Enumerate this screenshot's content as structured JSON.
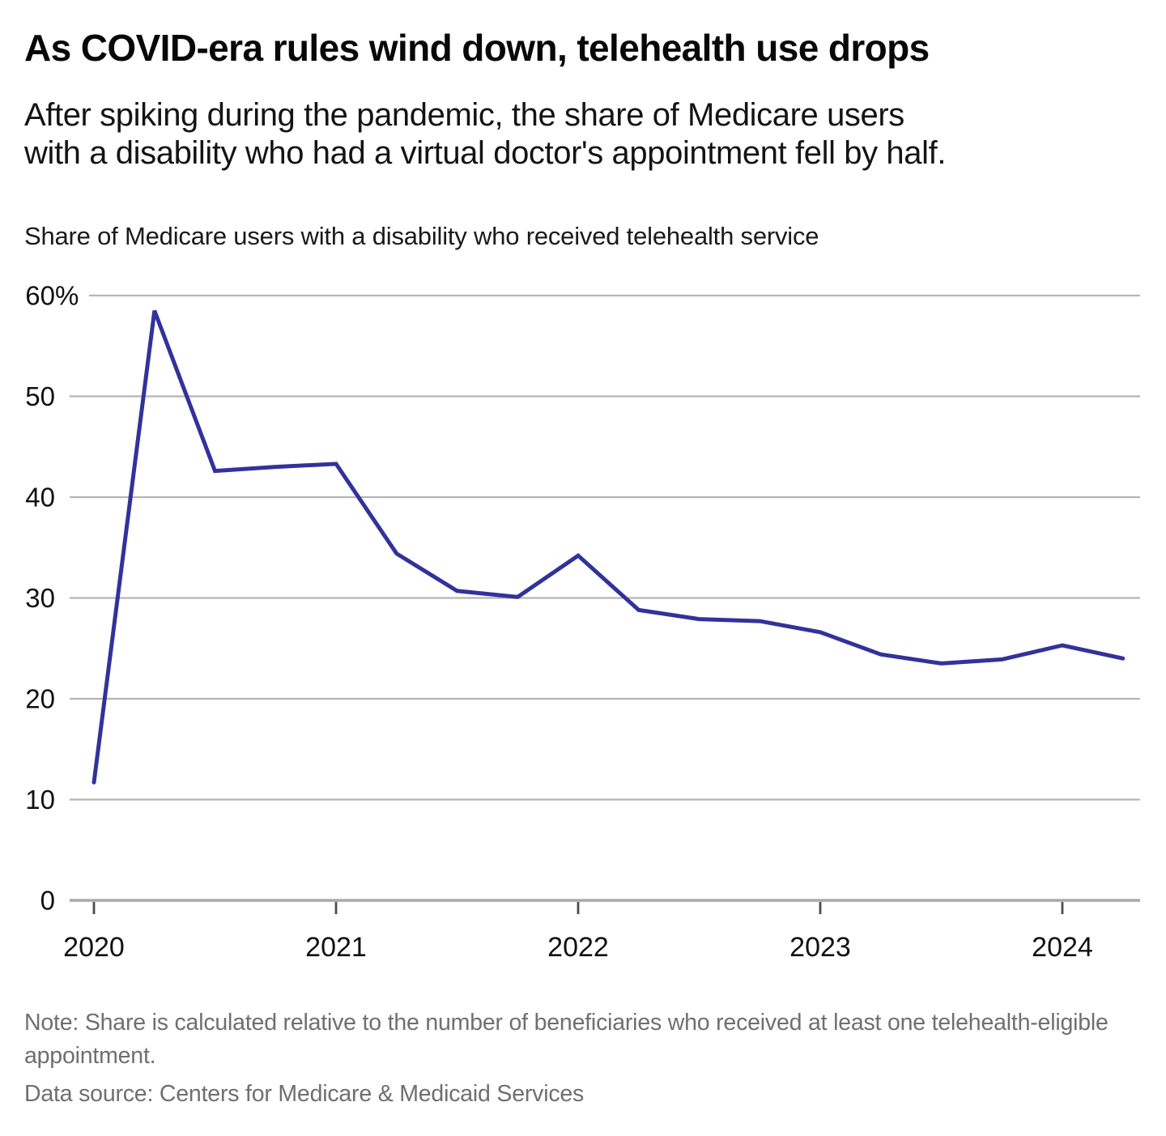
{
  "header": {
    "title": "As COVID-era rules wind down, telehealth use drops",
    "subtitle_lines": [
      "After spiking during the pandemic, the share of Medicare users",
      "with a disability who had a virtual doctor's appointment fell by half."
    ]
  },
  "chart_data": {
    "type": "line",
    "title": "Share of Medicare users with a disability who received telehealth service",
    "x": [
      "2020 Q1",
      "2020 Q2",
      "2020 Q3",
      "2020 Q4",
      "2021 Q1",
      "2021 Q2",
      "2021 Q3",
      "2021 Q4",
      "2022 Q1",
      "2022 Q2",
      "2022 Q3",
      "2022 Q4",
      "2023 Q1",
      "2023 Q2",
      "2023 Q3",
      "2023 Q4",
      "2024 Q1",
      "2024 Q2"
    ],
    "values": [
      11.7,
      58.5,
      42.6,
      43.0,
      43.3,
      34.4,
      30.7,
      30.1,
      34.2,
      28.8,
      27.9,
      27.7,
      26.6,
      24.4,
      23.5,
      23.9,
      25.3,
      24.0
    ],
    "xlabel": "",
    "ylabel": "",
    "ylim": [
      0,
      60
    ],
    "ytick_labels": [
      "60%",
      "50",
      "40",
      "30",
      "20",
      "10",
      "0"
    ],
    "xtick_labels": [
      "2020",
      "2021",
      "2022",
      "2023",
      "2024"
    ],
    "grid": "horizontal",
    "legend": "none",
    "line_color": "#32329b",
    "gridline_color": "#b5b5b5"
  },
  "footer": {
    "note": "Note: Share is calculated relative to the number of beneficiaries who received at least one telehealth-eligible appointment.",
    "source": "Data source: Centers for Medicare & Medicaid Services"
  }
}
